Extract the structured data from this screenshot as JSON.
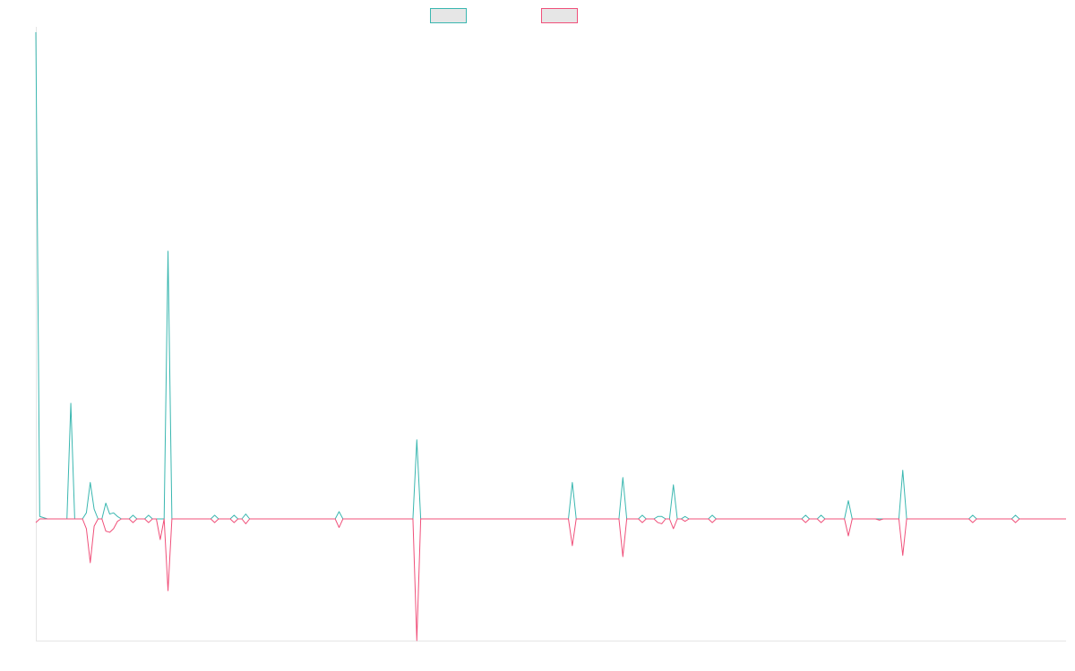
{
  "chart_data": {
    "type": "line",
    "title": "",
    "xlabel": "",
    "ylabel": "",
    "grid": false,
    "legend": {
      "position": "top-center",
      "entries": [
        {
          "name": "",
          "color": "#3ab7b0",
          "fill": "#e6e6e6"
        },
        {
          "name": "",
          "color": "#f0507a",
          "fill": "#e6e6e6"
        }
      ]
    },
    "x_count": 266,
    "xlim": [
      0,
      265
    ],
    "ylim": [
      -100,
      400
    ],
    "baseline": 0,
    "series": [
      {
        "name": "",
        "color": "#3ab7b0",
        "points": [
          [
            0,
            400
          ],
          [
            1,
            2
          ],
          [
            3,
            0
          ],
          [
            8,
            0
          ],
          [
            9,
            95
          ],
          [
            10,
            0
          ],
          [
            12,
            0
          ],
          [
            13,
            5
          ],
          [
            14,
            30
          ],
          [
            15,
            8
          ],
          [
            16,
            0
          ],
          [
            17,
            0
          ],
          [
            18,
            13
          ],
          [
            19,
            4
          ],
          [
            20,
            5
          ],
          [
            21,
            2
          ],
          [
            22,
            0
          ],
          [
            24,
            0
          ],
          [
            25,
            3
          ],
          [
            26,
            0
          ],
          [
            28,
            0
          ],
          [
            29,
            3
          ],
          [
            30,
            0
          ],
          [
            33,
            0
          ],
          [
            34,
            220
          ],
          [
            35,
            0
          ],
          [
            45,
            0
          ],
          [
            46,
            3
          ],
          [
            47,
            0
          ],
          [
            50,
            0
          ],
          [
            51,
            3
          ],
          [
            52,
            0
          ],
          [
            53,
            0
          ],
          [
            54,
            4
          ],
          [
            55,
            0
          ],
          [
            77,
            0
          ],
          [
            78,
            6
          ],
          [
            79,
            0
          ],
          [
            97,
            0
          ],
          [
            98,
            65
          ],
          [
            99,
            0
          ],
          [
            137,
            0
          ],
          [
            138,
            30
          ],
          [
            139,
            0
          ],
          [
            150,
            0
          ],
          [
            151,
            34
          ],
          [
            152,
            0
          ],
          [
            155,
            0
          ],
          [
            156,
            3
          ],
          [
            157,
            0
          ],
          [
            159,
            0
          ],
          [
            160,
            2
          ],
          [
            161,
            2
          ],
          [
            162,
            0
          ],
          [
            163,
            0
          ],
          [
            164,
            28
          ],
          [
            165,
            0
          ],
          [
            166,
            0
          ],
          [
            167,
            2
          ],
          [
            168,
            0
          ],
          [
            173,
            0
          ],
          [
            174,
            3
          ],
          [
            175,
            0
          ],
          [
            197,
            0
          ],
          [
            198,
            3
          ],
          [
            199,
            0
          ],
          [
            201,
            0
          ],
          [
            202,
            3
          ],
          [
            203,
            0
          ],
          [
            208,
            0
          ],
          [
            209,
            15
          ],
          [
            210,
            0
          ],
          [
            216,
            0
          ],
          [
            217,
            0
          ],
          [
            218,
            0
          ],
          [
            222,
            0
          ],
          [
            223,
            40
          ],
          [
            224,
            0
          ],
          [
            240,
            0
          ],
          [
            241,
            3
          ],
          [
            242,
            0
          ],
          [
            251,
            0
          ],
          [
            252,
            3
          ],
          [
            253,
            0
          ],
          [
            266,
            0
          ],
          [
            267,
            3
          ],
          [
            268,
            0
          ]
        ]
      },
      {
        "name": "",
        "color": "#f0507a",
        "points": [
          [
            0,
            -3
          ],
          [
            1,
            0
          ],
          [
            3,
            0
          ],
          [
            8,
            0
          ],
          [
            9,
            0
          ],
          [
            12,
            0
          ],
          [
            13,
            -8
          ],
          [
            14,
            -36
          ],
          [
            15,
            -6
          ],
          [
            16,
            0
          ],
          [
            17,
            0
          ],
          [
            18,
            -10
          ],
          [
            19,
            -11
          ],
          [
            20,
            -8
          ],
          [
            21,
            -2
          ],
          [
            22,
            0
          ],
          [
            24,
            0
          ],
          [
            25,
            -3
          ],
          [
            26,
            0
          ],
          [
            28,
            0
          ],
          [
            29,
            -3
          ],
          [
            30,
            0
          ],
          [
            31,
            0
          ],
          [
            32,
            -17
          ],
          [
            33,
            0
          ],
          [
            34,
            -59
          ],
          [
            35,
            0
          ],
          [
            45,
            0
          ],
          [
            46,
            -3
          ],
          [
            47,
            0
          ],
          [
            50,
            0
          ],
          [
            51,
            -3
          ],
          [
            52,
            0
          ],
          [
            53,
            0
          ],
          [
            54,
            -4
          ],
          [
            55,
            0
          ],
          [
            77,
            0
          ],
          [
            78,
            -7
          ],
          [
            79,
            0
          ],
          [
            97,
            0
          ],
          [
            98,
            -100
          ],
          [
            99,
            0
          ],
          [
            137,
            0
          ],
          [
            138,
            -22
          ],
          [
            139,
            0
          ],
          [
            150,
            0
          ],
          [
            151,
            -31
          ],
          [
            152,
            0
          ],
          [
            155,
            0
          ],
          [
            156,
            -3
          ],
          [
            157,
            0
          ],
          [
            159,
            0
          ],
          [
            160,
            -3
          ],
          [
            161,
            -4
          ],
          [
            162,
            0
          ],
          [
            163,
            0
          ],
          [
            164,
            -8
          ],
          [
            165,
            0
          ],
          [
            166,
            0
          ],
          [
            167,
            -2
          ],
          [
            168,
            0
          ],
          [
            173,
            0
          ],
          [
            174,
            -3
          ],
          [
            175,
            0
          ],
          [
            197,
            0
          ],
          [
            198,
            -3
          ],
          [
            199,
            0
          ],
          [
            201,
            0
          ],
          [
            202,
            -3
          ],
          [
            203,
            0
          ],
          [
            208,
            0
          ],
          [
            209,
            -14
          ],
          [
            210,
            0
          ],
          [
            216,
            0
          ],
          [
            217,
            -1
          ],
          [
            218,
            0
          ],
          [
            222,
            0
          ],
          [
            223,
            -30
          ],
          [
            224,
            0
          ],
          [
            240,
            0
          ],
          [
            241,
            -3
          ],
          [
            242,
            0
          ],
          [
            251,
            0
          ],
          [
            252,
            -3
          ],
          [
            253,
            0
          ],
          [
            266,
            0
          ],
          [
            267,
            -3
          ],
          [
            268,
            0
          ]
        ]
      }
    ]
  }
}
